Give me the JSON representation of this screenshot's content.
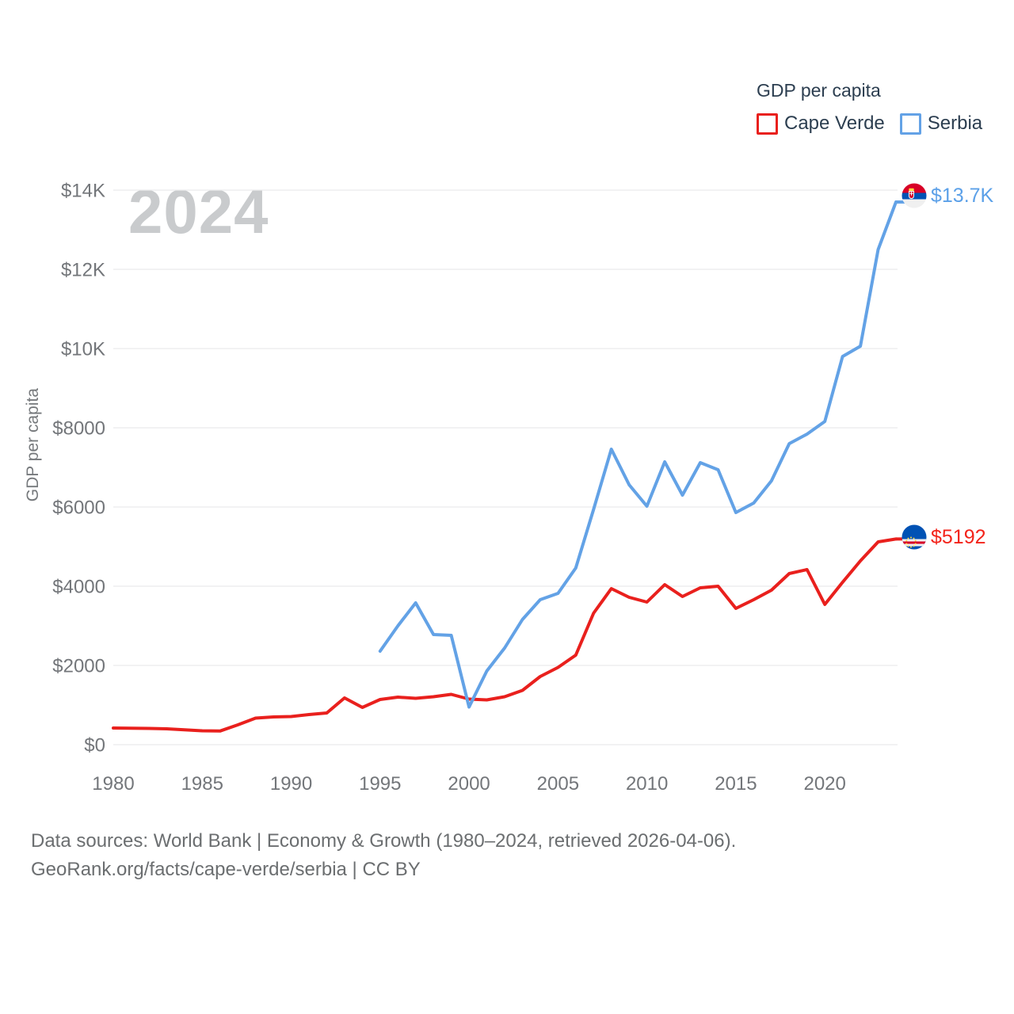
{
  "legend": {
    "title": "GDP per capita"
  },
  "watermark": {
    "text": "2024"
  },
  "y_axis": {
    "title": "GDP per capita",
    "ticks": [
      {
        "value": 0,
        "label": "$0"
      },
      {
        "value": 2000,
        "label": "$2000"
      },
      {
        "value": 4000,
        "label": "$4000"
      },
      {
        "value": 6000,
        "label": "$6000"
      },
      {
        "value": 8000,
        "label": "$8000"
      },
      {
        "value": 10000,
        "label": "$10K"
      },
      {
        "value": 12000,
        "label": "$12K"
      },
      {
        "value": 14000,
        "label": "$14K"
      }
    ]
  },
  "x_axis": {
    "ticks": [
      {
        "value": 1980,
        "label": "1980"
      },
      {
        "value": 1985,
        "label": "1985"
      },
      {
        "value": 1990,
        "label": "1990"
      },
      {
        "value": 1995,
        "label": "1995"
      },
      {
        "value": 2000,
        "label": "2000"
      },
      {
        "value": 2005,
        "label": "2005"
      },
      {
        "value": 2010,
        "label": "2010"
      },
      {
        "value": 2015,
        "label": "2015"
      },
      {
        "value": 2020,
        "label": "2020"
      }
    ]
  },
  "chart_data": {
    "type": "line",
    "title": "GDP per capita",
    "xlabel": "",
    "ylabel": "GDP per capita",
    "x_range": [
      1980,
      2024
    ],
    "ylim": [
      0,
      14000
    ],
    "grid": "horizontal",
    "legend_position": "top-right",
    "series": [
      {
        "name": "Cape Verde",
        "color": "#e9201d",
        "flag_icon": "cape-verde-flag-icon",
        "start_year": 1980,
        "end_label": "$5192",
        "end_value": 5192,
        "values": [
          420,
          415,
          410,
          400,
          375,
          350,
          345,
          500,
          670,
          700,
          710,
          760,
          800,
          1180,
          940,
          1140,
          1200,
          1170,
          1210,
          1270,
          1150,
          1130,
          1210,
          1370,
          1720,
          1950,
          2260,
          3320,
          3940,
          3720,
          3600,
          4040,
          3740,
          3960,
          4000,
          3440,
          3660,
          3900,
          4320,
          4420,
          3540,
          4100,
          4640,
          5120,
          5192
        ]
      },
      {
        "name": "Serbia",
        "color": "#63a2e6",
        "flag_icon": "serbia-flag-icon",
        "start_year": 1995,
        "end_label": "$13.7K",
        "end_value": 13700,
        "values": [
          2360,
          3000,
          3580,
          2780,
          2760,
          950,
          1860,
          2440,
          3160,
          3660,
          3820,
          4460,
          5940,
          7460,
          6560,
          6020,
          7140,
          6300,
          7120,
          6940,
          5860,
          6100,
          6660,
          7600,
          7840,
          8160,
          9800,
          10060,
          12500,
          13700
        ]
      }
    ]
  },
  "colors": {
    "grid": "#eaebec",
    "axis_text": "#73767a",
    "title_text": "#2c3e50",
    "watermark_text": "#c9cbcd",
    "footer_text": "#6b6e70",
    "end_label_serbia": "#5ba0e8",
    "end_label_cape_verde": "#f3231a"
  },
  "footer": {
    "line1": "Data sources: World Bank | Economy & Growth (1980–2024, retrieved 2026-04-06).",
    "line2": "GeoRank.org/facts/cape-verde/serbia | CC BY"
  }
}
